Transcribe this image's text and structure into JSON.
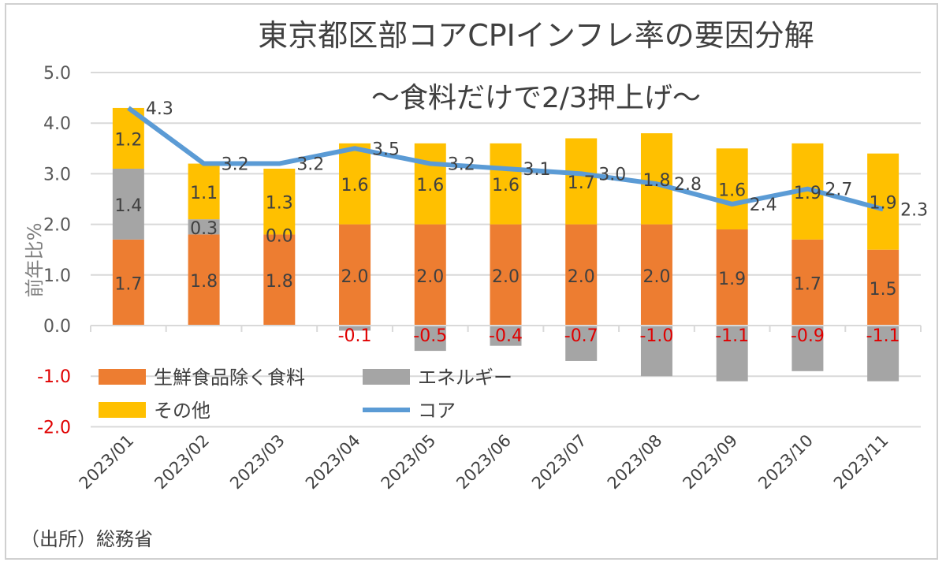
{
  "chart_data": {
    "type": "bar",
    "stacked": true,
    "title": "東京都区部コアCPIインフレ率の要因分解",
    "subtitle": "～食料だけで2/3押上げ～",
    "ylabel": "前年比%",
    "xlabel": "",
    "ylim": [
      -2.0,
      5.0
    ],
    "yticks": [
      "5.0",
      "4.0",
      "3.0",
      "2.0",
      "1.0",
      "0.0",
      "-1.0",
      "-2.0"
    ],
    "grid": true,
    "legend_position": "bottom-left",
    "categories": [
      "2023/01",
      "2023/02",
      "2023/03",
      "2023/04",
      "2023/05",
      "2023/06",
      "2023/07",
      "2023/08",
      "2023/09",
      "2023/10",
      "2023/11"
    ],
    "series": [
      {
        "name": "生鮮食品除く食料",
        "type": "bar",
        "color": "#ED7D31",
        "values": [
          1.7,
          1.8,
          1.8,
          2.0,
          2.0,
          2.0,
          2.0,
          2.0,
          1.9,
          1.7,
          1.5
        ]
      },
      {
        "name": "エネルギー",
        "type": "bar",
        "color": "#A5A5A5",
        "values": [
          1.4,
          0.3,
          0.0,
          -0.1,
          -0.5,
          -0.4,
          -0.7,
          -1.0,
          -1.1,
          -0.9,
          -1.1
        ]
      },
      {
        "name": "その他",
        "type": "bar",
        "color": "#FFC000",
        "values": [
          1.2,
          1.1,
          1.3,
          1.6,
          1.6,
          1.6,
          1.7,
          1.8,
          1.6,
          1.9,
          1.9
        ]
      },
      {
        "name": "コア",
        "type": "line",
        "color": "#5B9BD5",
        "values": [
          4.3,
          3.2,
          3.2,
          3.5,
          3.2,
          3.1,
          3.0,
          2.8,
          2.4,
          2.7,
          2.3
        ]
      }
    ],
    "negative_label_color": "#E00000",
    "source": "（出所）総務省"
  }
}
